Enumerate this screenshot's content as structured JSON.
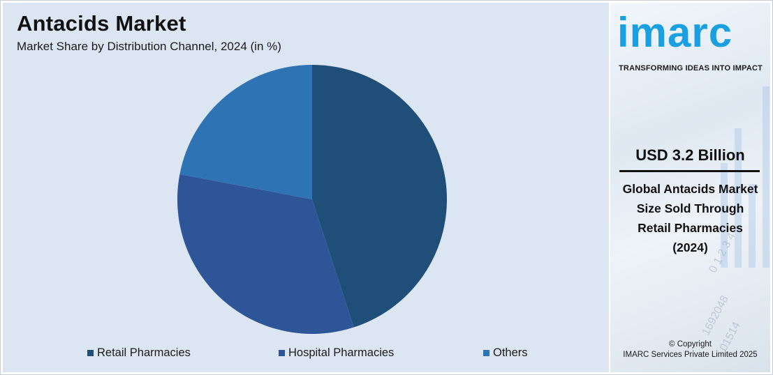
{
  "chart_data": {
    "type": "pie",
    "title": "Antacids Market",
    "subtitle": "Market Share by Distribution Channel, 2024 (in %)",
    "categories": [
      "Retail Pharmacies",
      "Hospital Pharmacies",
      "Others"
    ],
    "values": [
      45,
      33,
      22
    ],
    "colors": [
      "#1f4e79",
      "#2e5597",
      "#2e74b5"
    ],
    "legend_position": "bottom"
  },
  "sidebar": {
    "logo_text": "imarc",
    "tagline": "TRANSFORMING IDEAS INTO IMPACT",
    "headline_value": "USD 3.2 Billion",
    "description_lines": [
      "Global Antacids Market",
      "Size Sold Through",
      "Retail Pharmacies",
      "(2024)"
    ],
    "copyright_line1": "© Copyright",
    "copyright_line2": "IMARC Services Private Limited 2025"
  }
}
